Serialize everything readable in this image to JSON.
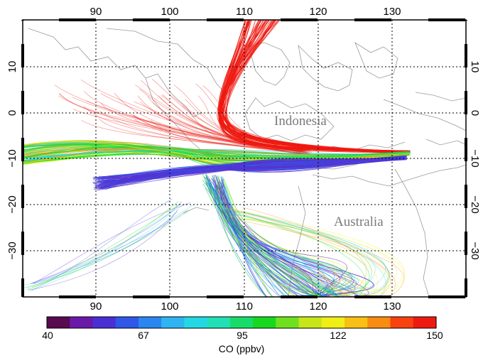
{
  "map": {
    "lon_ticks": [
      "90",
      "100",
      "110",
      "120",
      "130"
    ],
    "lat_ticks": [
      "10",
      "0",
      "−10",
      "−20",
      "−30"
    ],
    "place_labels": {
      "indonesia": "Indonesia",
      "australia": "Australia"
    },
    "grid_style": "dotted"
  },
  "colorbar": {
    "tick_labels": [
      "40",
      "67",
      "95",
      "122",
      "150"
    ],
    "title": "CO (ppbv)",
    "colors": [
      "#5a0a4e",
      "#6b1aa8",
      "#4b2fd6",
      "#2f57e8",
      "#2a86f0",
      "#2fb4f2",
      "#23d8e4",
      "#22e0b6",
      "#18dc6a",
      "#16d81e",
      "#6fe01e",
      "#c7e61a",
      "#f0ee16",
      "#f8c014",
      "#fa8c12",
      "#f8420f",
      "#ee1a12"
    ]
  },
  "trajectory_colors": {
    "red": "#ee1a12",
    "orange": "#fa8c12",
    "yellow": "#f0ee16",
    "green": "#16d81e",
    "cyan": "#23d8e4",
    "blue": "#2f57e8",
    "purple": "#5a2fd0"
  }
}
